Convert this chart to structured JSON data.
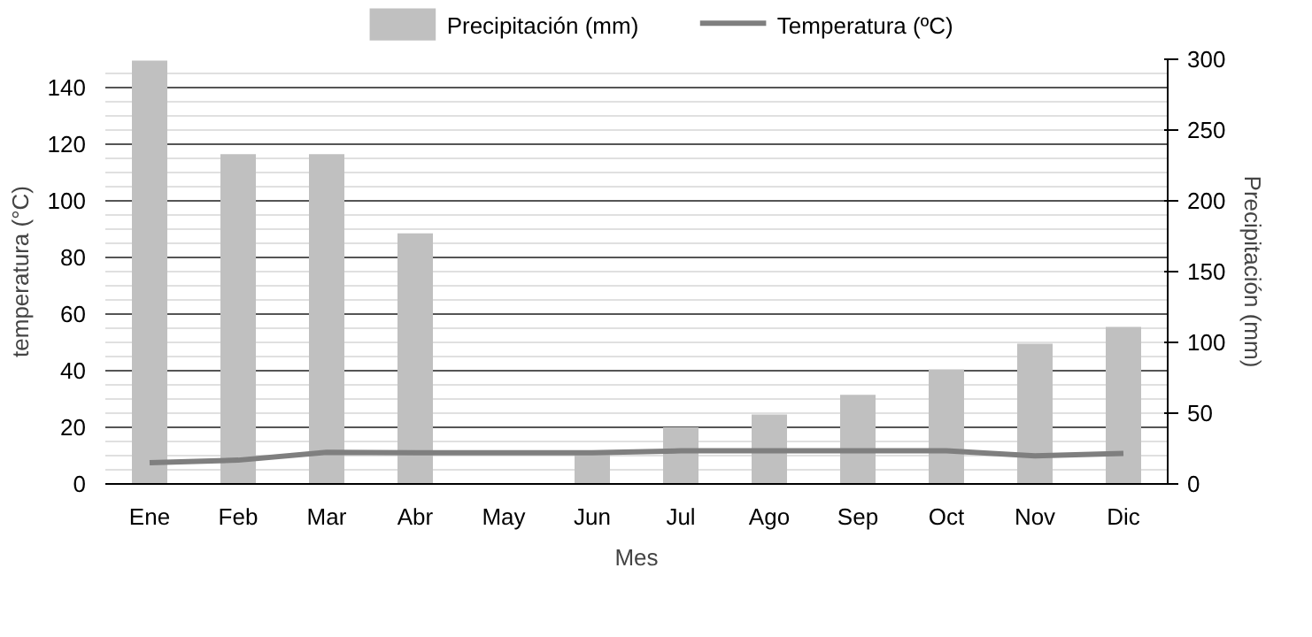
{
  "chart_data": {
    "type": "bar",
    "categories": [
      "Ene",
      "Feb",
      "Mar",
      "Abr",
      "May",
      "Jun",
      "Jul",
      "Ago",
      "Sep",
      "Oct",
      "Nov",
      "Dic"
    ],
    "series": [
      {
        "name": "Precipitación (mm)",
        "axis": "y2",
        "color": "#c0c0c0",
        "values": [
          299,
          233,
          233,
          177,
          0,
          22,
          40,
          49,
          63,
          81,
          99,
          111
        ]
      },
      {
        "name": "Temperatura (ºC)",
        "type": "line",
        "color": "#7f7f7f",
        "values": [
          7.5,
          8.4,
          11.2,
          11,
          11,
          11,
          11.7,
          11.7,
          11.7,
          11.7,
          9.9,
          10.8
        ]
      }
    ],
    "xlabel": "Mes",
    "ylabel": "temperatura (°C)",
    "y2label": "Precipitación (mm)",
    "ylim": [
      0,
      150
    ],
    "yticks": [
      0,
      20,
      40,
      60,
      80,
      100,
      120,
      140
    ],
    "y2lim": [
      0,
      300
    ],
    "y2ticks": [
      0,
      50,
      100,
      150,
      200,
      250,
      300
    ],
    "grid": "y",
    "legend": "top",
    "line_style": "solid",
    "marker": "none"
  }
}
